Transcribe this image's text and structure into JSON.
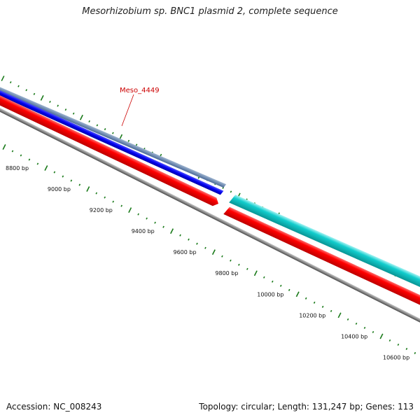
{
  "title": "Mesorhizobium sp. BNC1 plasmid 2, complete sequence",
  "footer": {
    "accession": "Accession: NC_008243",
    "summary": "Topology: circular; Length: 131,247 bp; Genes: 113"
  },
  "colors": {
    "background": "#ffffff",
    "tick": "#1a7a1a",
    "backbone": "#808080",
    "gene_forward_highlight": "#0000ee",
    "gene_forward_shade": "#5a7aa8",
    "gene_forward_other": "#00c8c8",
    "gene_reverse": "#ff0000",
    "label": "#cc0000"
  },
  "gene_label": "Meso_4449",
  "position_labels": [
    "8800 bp",
    "9000 bp",
    "9200 bp",
    "9400 bp",
    "9600 bp",
    "9800 bp",
    "10000 bp",
    "10200 bp",
    "10400 bp",
    "10600 bp"
  ]
}
